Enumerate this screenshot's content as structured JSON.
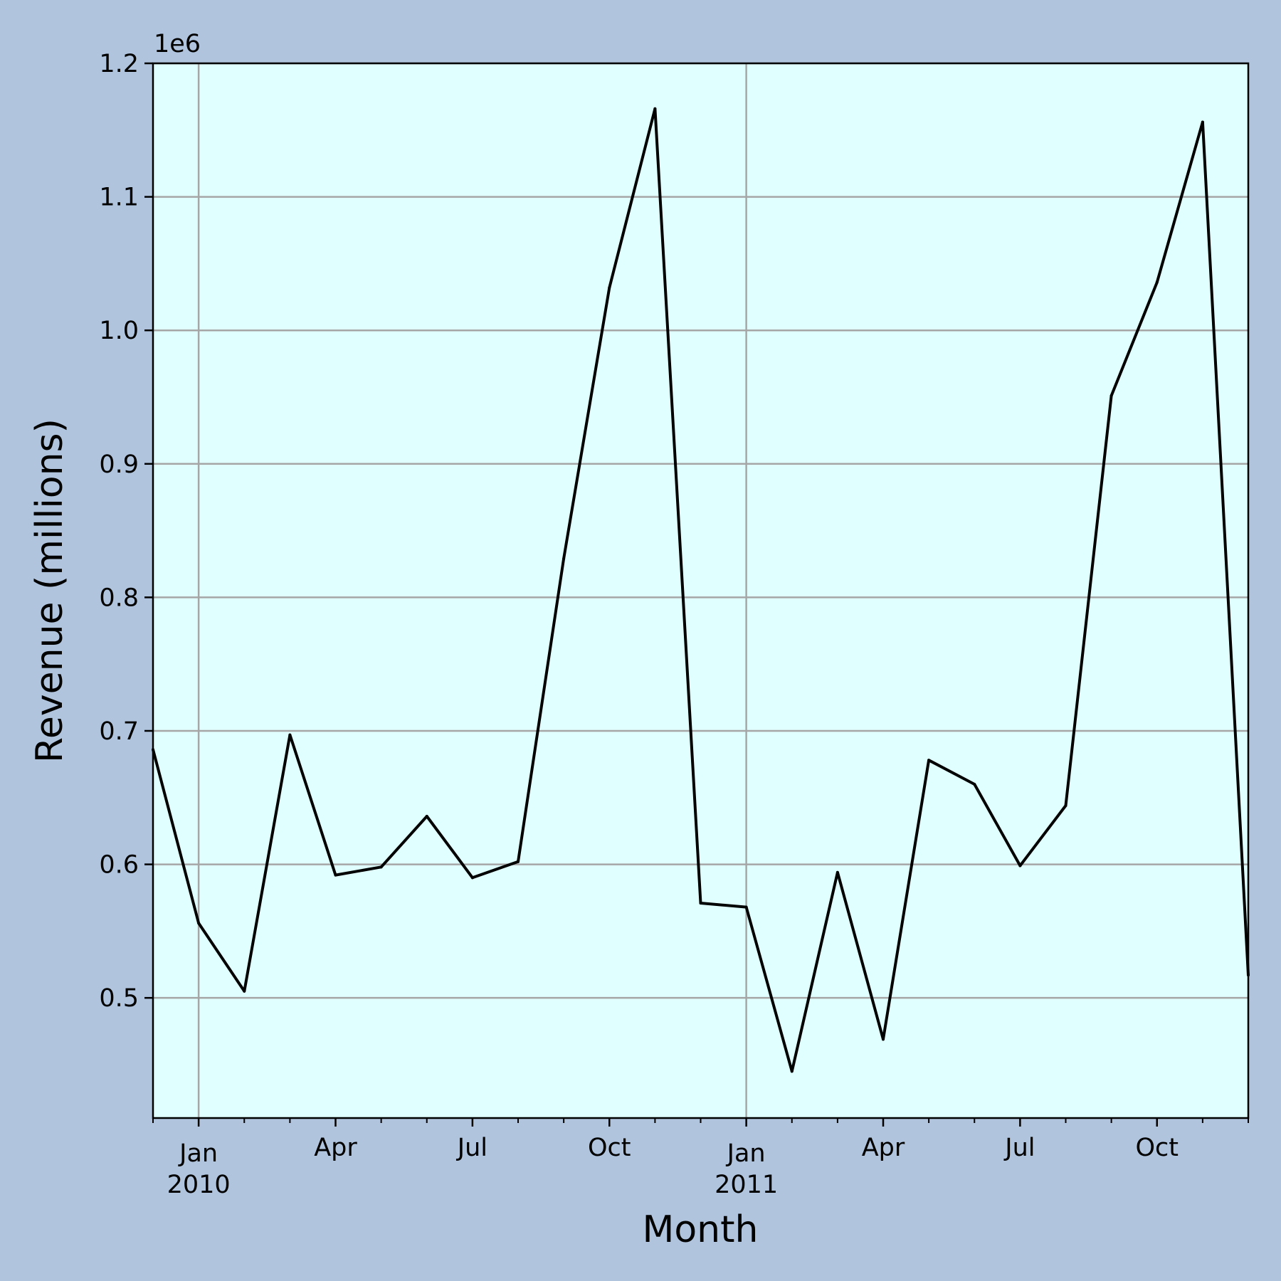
{
  "chart_data": {
    "type": "line",
    "title": "",
    "xlabel": "Month",
    "ylabel": "Revenue (millions)",
    "y_offset_label": "1e6",
    "background": "#b0c4de",
    "plot_background": "#e0ffff",
    "line_color": "#000000",
    "grid": true,
    "legend": "none",
    "x": [
      "2009-12",
      "2010-01",
      "2010-02",
      "2010-03",
      "2010-04",
      "2010-05",
      "2010-06",
      "2010-07",
      "2010-08",
      "2010-09",
      "2010-10",
      "2010-11",
      "2010-12",
      "2011-01",
      "2011-02",
      "2011-03",
      "2011-04",
      "2011-05",
      "2011-06",
      "2011-07",
      "2011-08",
      "2011-09",
      "2011-10",
      "2011-11",
      "2011-12"
    ],
    "values": [
      686000,
      556000,
      505000,
      697000,
      592000,
      598000,
      636000,
      590000,
      602000,
      829000,
      1032000,
      1166000,
      571000,
      568000,
      445000,
      594000,
      469000,
      678000,
      660000,
      599000,
      644000,
      951000,
      1036000,
      1156000,
      517000
    ],
    "xlim": [
      "2009-12",
      "2011-12"
    ],
    "ylim": [
      410000,
      1200000
    ],
    "y_ticks": [
      {
        "value": 500000,
        "label": "0.5"
      },
      {
        "value": 600000,
        "label": "0.6"
      },
      {
        "value": 700000,
        "label": "0.7"
      },
      {
        "value": 800000,
        "label": "0.8"
      },
      {
        "value": 900000,
        "label": "0.9"
      },
      {
        "value": 1000000,
        "label": "1.0"
      },
      {
        "value": 1100000,
        "label": "1.1"
      },
      {
        "value": 1200000,
        "label": "1.2"
      }
    ],
    "x_major_ticks": [
      {
        "date": "2010-01",
        "label": "Jan",
        "sublabel": "2010"
      },
      {
        "date": "2010-04",
        "label": "Apr",
        "sublabel": ""
      },
      {
        "date": "2010-07",
        "label": "Jul",
        "sublabel": ""
      },
      {
        "date": "2010-10",
        "label": "Oct",
        "sublabel": ""
      },
      {
        "date": "2011-01",
        "label": "Jan",
        "sublabel": "2011"
      },
      {
        "date": "2011-04",
        "label": "Apr",
        "sublabel": ""
      },
      {
        "date": "2011-07",
        "label": "Jul",
        "sublabel": ""
      },
      {
        "date": "2011-10",
        "label": "Oct",
        "sublabel": ""
      }
    ],
    "x_minor_ticks": [
      "2009-12",
      "2010-02",
      "2010-03",
      "2010-05",
      "2010-06",
      "2010-08",
      "2010-09",
      "2010-11",
      "2010-12",
      "2011-02",
      "2011-03",
      "2011-05",
      "2011-06",
      "2011-08",
      "2011-09",
      "2011-11",
      "2011-12"
    ],
    "x_gridlines": [
      "2010-01",
      "2011-01"
    ]
  }
}
